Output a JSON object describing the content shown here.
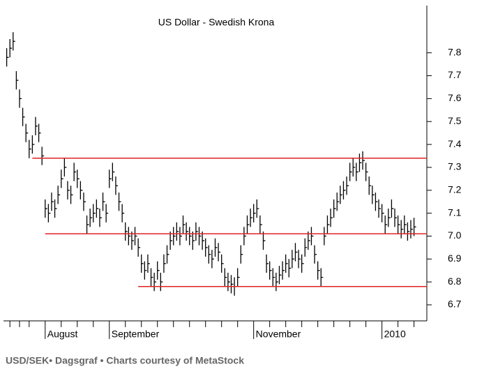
{
  "chart_data": {
    "type": "ohlc",
    "title": "US Dollar - Swedish Krona",
    "caption": "USD/SEK• Dagsgraf • Charts courtesy of MetaStock",
    "color": "#000000",
    "level_color": "#e02020",
    "xlim": [
      -1,
      131
    ],
    "ylim": [
      6.63,
      8.0
    ],
    "yticks": [
      6.7,
      6.8,
      6.9,
      {
        "value": 7,
        "label": "7.0"
      },
      7.1,
      7.2,
      7.3,
      7.4,
      7.5,
      7.6,
      7.7,
      7.8
    ],
    "xticks": [
      {
        "value": 12,
        "label": "August"
      },
      {
        "value": 32,
        "label": "September"
      },
      {
        "value": 77,
        "label": "November"
      },
      {
        "value": 117,
        "label": "2010"
      }
    ],
    "minor_xticks": [
      1,
      4,
      7,
      17,
      22,
      27,
      37,
      42,
      47,
      52,
      57,
      62,
      67,
      72,
      82,
      87,
      92,
      97,
      102,
      107,
      112,
      122,
      127
    ],
    "levels": [
      {
        "value": 7.34,
        "start": 8
      },
      {
        "value": 7.01,
        "start": 12
      },
      {
        "value": 6.78,
        "start": 41
      }
    ],
    "high": [
      7.82,
      7.86,
      7.89,
      7.72,
      7.64,
      7.56,
      7.49,
      7.42,
      7.44,
      7.52,
      7.49,
      7.39,
      7.16,
      7.14,
      7.19,
      7.16,
      7.22,
      7.29,
      7.34,
      7.24,
      7.22,
      7.32,
      7.29,
      7.24,
      7.19,
      7.09,
      7.12,
      7.14,
      7.16,
      7.12,
      7.19,
      7.14,
      7.29,
      7.32,
      7.26,
      7.19,
      7.14,
      7.06,
      7.04,
      7.02,
      7.04,
      6.99,
      6.92,
      6.89,
      6.92,
      6.86,
      6.84,
      6.89,
      6.84,
      6.92,
      6.96,
      7.02,
      7.04,
      7.06,
      7.04,
      7.09,
      7.06,
      7.04,
      7.02,
      7.06,
      7.04,
      7.02,
      6.99,
      6.96,
      6.94,
      6.99,
      6.97,
      6.92,
      6.86,
      6.84,
      6.83,
      6.82,
      6.86,
      6.96,
      7.04,
      7.09,
      7.12,
      7.14,
      7.16,
      7.09,
      7.02,
      6.92,
      6.89,
      6.86,
      6.84,
      6.87,
      6.89,
      6.92,
      6.9,
      6.94,
      6.97,
      6.94,
      6.92,
      6.99,
      7.02,
      7.04,
      6.96,
      6.89,
      6.86,
      7.04,
      7.09,
      7.12,
      7.16,
      7.19,
      7.22,
      7.24,
      7.26,
      7.32,
      7.34,
      7.32,
      7.36,
      7.37,
      7.32,
      7.26,
      7.22,
      7.19,
      7.16,
      7.14,
      7.09,
      7.12,
      7.16,
      7.12,
      7.09,
      7.07,
      7.09,
      7.06,
      7.07,
      7.08
    ],
    "low": [
      7.74,
      7.78,
      7.81,
      7.64,
      7.56,
      7.48,
      7.41,
      7.34,
      7.36,
      7.44,
      7.41,
      7.31,
      7.08,
      7.06,
      7.11,
      7.08,
      7.14,
      7.21,
      7.26,
      7.16,
      7.14,
      7.24,
      7.21,
      7.16,
      7.11,
      7.01,
      7.04,
      7.06,
      7.08,
      7.04,
      7.11,
      7.06,
      7.21,
      7.24,
      7.18,
      7.11,
      7.06,
      6.98,
      6.96,
      6.94,
      6.96,
      6.91,
      6.84,
      6.81,
      6.84,
      6.78,
      6.76,
      6.81,
      6.76,
      6.84,
      6.88,
      6.94,
      6.96,
      6.98,
      6.96,
      7.01,
      6.98,
      6.96,
      6.94,
      6.98,
      6.96,
      6.94,
      6.91,
      6.88,
      6.86,
      6.91,
      6.89,
      6.84,
      6.78,
      6.76,
      6.75,
      6.74,
      6.78,
      6.88,
      6.96,
      7.01,
      7.04,
      7.06,
      7.08,
      7.01,
      6.94,
      6.84,
      6.81,
      6.78,
      6.76,
      6.79,
      6.81,
      6.84,
      6.82,
      6.86,
      6.89,
      6.86,
      6.84,
      6.91,
      6.94,
      6.96,
      6.88,
      6.81,
      6.78,
      6.96,
      7.01,
      7.04,
      7.08,
      7.11,
      7.14,
      7.16,
      7.18,
      7.24,
      7.26,
      7.24,
      7.28,
      7.29,
      7.24,
      7.18,
      7.14,
      7.11,
      7.08,
      7.06,
      7.01,
      7.04,
      7.08,
      7.04,
      7.01,
      6.99,
      7.01,
      6.98,
      6.99,
      7.0
    ],
    "close": [
      7.78,
      7.82,
      7.85,
      7.68,
      7.6,
      7.52,
      7.45,
      7.38,
      7.4,
      7.48,
      7.45,
      7.35,
      7.12,
      7.1,
      7.15,
      7.12,
      7.18,
      7.25,
      7.3,
      7.2,
      7.18,
      7.28,
      7.25,
      7.2,
      7.15,
      7.05,
      7.08,
      7.1,
      7.12,
      7.08,
      7.15,
      7.1,
      7.25,
      7.28,
      7.22,
      7.15,
      7.1,
      7.02,
      7.0,
      6.98,
      7.0,
      6.95,
      6.88,
      6.85,
      6.88,
      6.82,
      6.8,
      6.85,
      6.8,
      6.88,
      6.92,
      6.98,
      7.0,
      7.02,
      7.0,
      7.05,
      7.02,
      7.0,
      6.98,
      7.02,
      7.0,
      6.98,
      6.95,
      6.92,
      6.9,
      6.95,
      6.93,
      6.88,
      6.82,
      6.8,
      6.79,
      6.78,
      6.82,
      6.92,
      7.0,
      7.05,
      7.08,
      7.1,
      7.12,
      7.05,
      6.98,
      6.88,
      6.85,
      6.82,
      6.8,
      6.83,
      6.85,
      6.88,
      6.86,
      6.9,
      6.93,
      6.9,
      6.88,
      6.95,
      6.98,
      7.0,
      6.92,
      6.85,
      6.82,
      7.0,
      7.05,
      7.08,
      7.12,
      7.15,
      7.18,
      7.2,
      7.22,
      7.28,
      7.3,
      7.28,
      7.32,
      7.33,
      7.28,
      7.22,
      7.18,
      7.15,
      7.12,
      7.1,
      7.05,
      7.08,
      7.12,
      7.08,
      7.05,
      7.03,
      7.05,
      7.02,
      7.03,
      7.04
    ]
  }
}
